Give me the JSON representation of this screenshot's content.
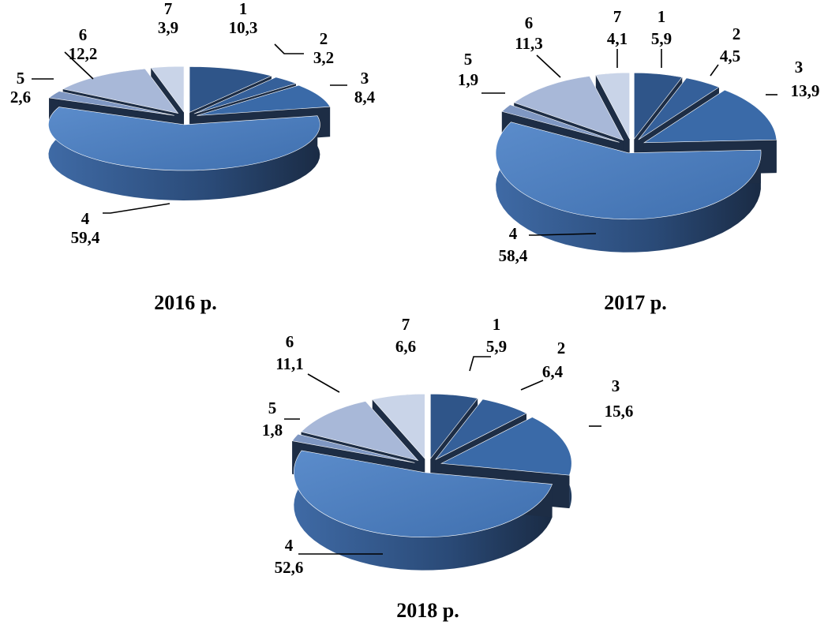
{
  "colors": {
    "c1": "#2f5589",
    "c2": "#35609a",
    "c3": "#3a6aa8",
    "c4": "#4a7ab9",
    "c5": "#7f97c2",
    "c6": "#a8b8d8",
    "c7": "#c9d4e8",
    "side_dark": "#1d2d45"
  },
  "chart_data": [
    {
      "type": "pie",
      "style": "3d-exploded",
      "caption": "2016 р.",
      "categories": [
        "1",
        "2",
        "3",
        "4",
        "5",
        "6",
        "7"
      ],
      "values": [
        10.3,
        3.2,
        8.4,
        59.4,
        2.6,
        12.2,
        3.9
      ],
      "labels": [
        {
          "cat": "1",
          "val": "10,3"
        },
        {
          "cat": "2",
          "val": "3,2"
        },
        {
          "cat": "3",
          "val": "8,4"
        },
        {
          "cat": "4",
          "val": "59,4"
        },
        {
          "cat": "5",
          "val": "2,6"
        },
        {
          "cat": "6",
          "val": "12,2"
        },
        {
          "cat": "7",
          "val": "3,9"
        }
      ]
    },
    {
      "type": "pie",
      "style": "3d-exploded",
      "caption": "2017 р.",
      "categories": [
        "1",
        "2",
        "3",
        "4",
        "5",
        "6",
        "7"
      ],
      "values": [
        5.9,
        4.5,
        13.9,
        58.4,
        1.9,
        11.3,
        4.1
      ],
      "labels": [
        {
          "cat": "1",
          "val": "5,9"
        },
        {
          "cat": "2",
          "val": "4,5"
        },
        {
          "cat": "3",
          "val": "13,9"
        },
        {
          "cat": "4",
          "val": "58,4"
        },
        {
          "cat": "5",
          "val": "1,9"
        },
        {
          "cat": "6",
          "val": "11,3"
        },
        {
          "cat": "7",
          "val": "4,1"
        }
      ]
    },
    {
      "type": "pie",
      "style": "3d-exploded",
      "caption": "2018 р.",
      "categories": [
        "1",
        "2",
        "3",
        "4",
        "5",
        "6",
        "7"
      ],
      "values": [
        5.9,
        6.4,
        15.6,
        52.6,
        1.8,
        11.1,
        6.6
      ],
      "labels": [
        {
          "cat": "1",
          "val": "5,9"
        },
        {
          "cat": "2",
          "val": "6,4"
        },
        {
          "cat": "3",
          "val": "15,6"
        },
        {
          "cat": "4",
          "val": "52,6"
        },
        {
          "cat": "5",
          "val": "1,8"
        },
        {
          "cat": "6",
          "val": "11,1"
        },
        {
          "cat": "7",
          "val": "6,6"
        }
      ]
    }
  ]
}
